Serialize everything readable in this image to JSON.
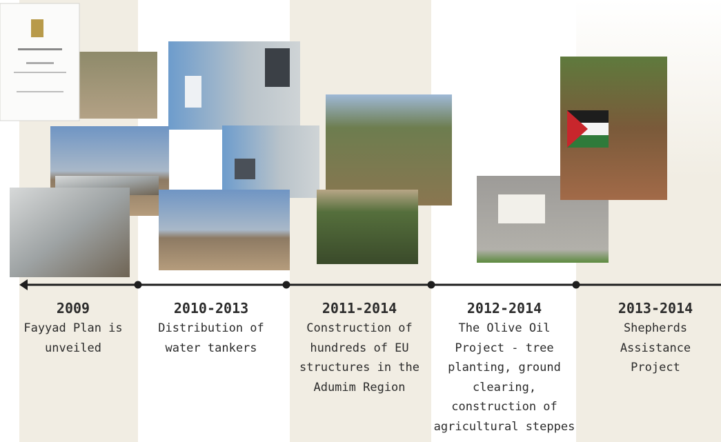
{
  "events": [
    {
      "year": "2009",
      "lines": [
        "Fayyad Plan is",
        "unveiled"
      ]
    },
    {
      "year": "2010-2013",
      "lines": [
        "Distribution of",
        "water tankers"
      ]
    },
    {
      "year": "2011-2014",
      "lines": [
        "Construction of",
        "hundreds of EU",
        "structures in the",
        "Adumim Region"
      ]
    },
    {
      "year": "2012-2014",
      "lines": [
        "The Olive Oil",
        "Project - tree",
        "planting, ground",
        "clearing,",
        "construction of",
        "agricultural steppes"
      ]
    },
    {
      "year": "2013-2014",
      "lines": [
        "Shepherds",
        "Assistance",
        "Project"
      ]
    }
  ]
}
